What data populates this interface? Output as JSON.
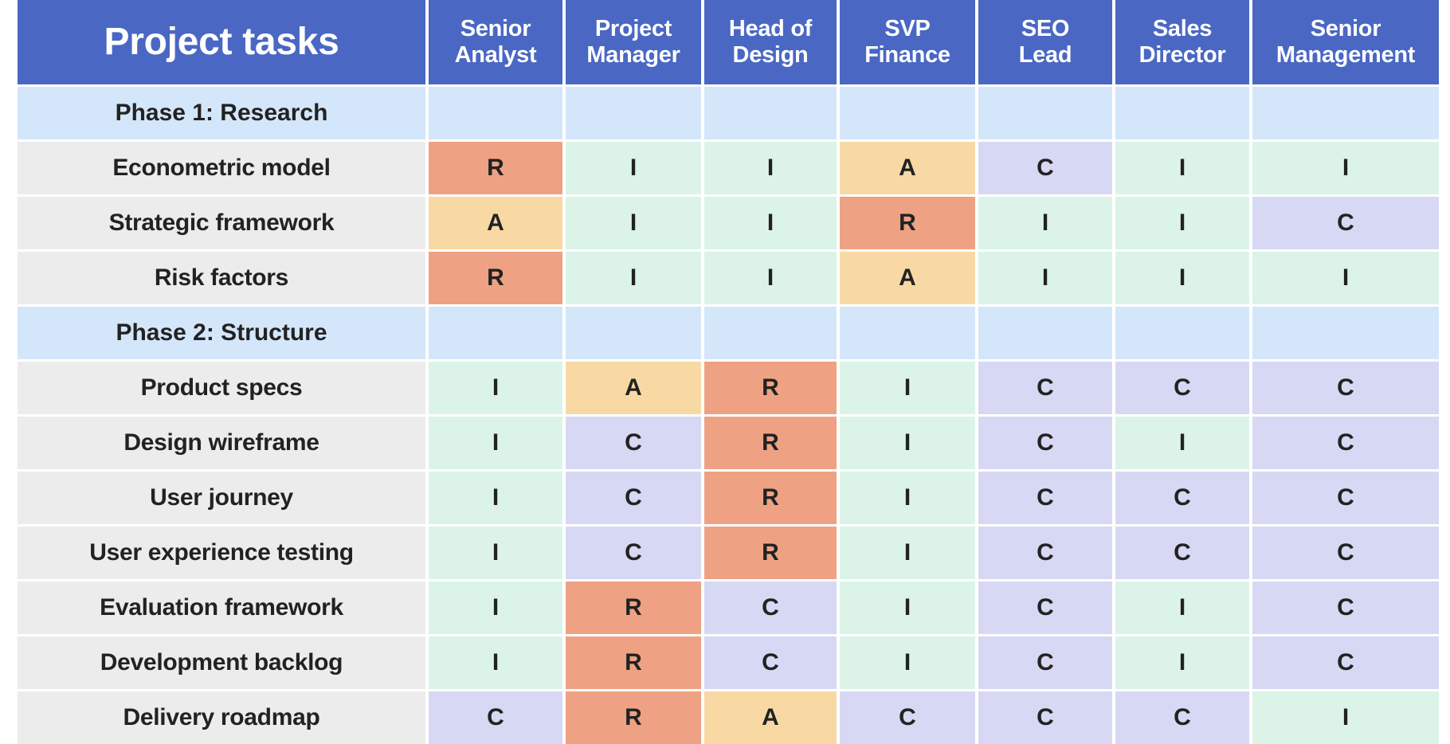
{
  "header": {
    "title": "Project tasks",
    "roles": [
      [
        "Senior",
        "Analyst"
      ],
      [
        "Project",
        "Manager"
      ],
      [
        "Head of",
        "Design"
      ],
      [
        "SVP",
        "Finance"
      ],
      [
        "SEO",
        "Lead"
      ],
      [
        "Sales",
        "Director"
      ],
      [
        "Senior",
        "Management"
      ]
    ]
  },
  "colors": {
    "header_bg": "#4a67c4",
    "phase_bg": "#d4e6fa",
    "task_bg": "#ececec",
    "R": "#eea283",
    "A": "#f8d9a4",
    "C": "#d7d8f3",
    "I": "#dbf4e7"
  },
  "rows": [
    {
      "type": "phase",
      "label": "Phase 1: Research"
    },
    {
      "type": "task",
      "label": "Econometric model",
      "codes": [
        "R",
        "I",
        "I",
        "A",
        "C",
        "I",
        "I"
      ]
    },
    {
      "type": "task",
      "label": "Strategic framework",
      "codes": [
        "A",
        "I",
        "I",
        "R",
        "I",
        "I",
        "C"
      ]
    },
    {
      "type": "task",
      "label": "Risk factors",
      "codes": [
        "R",
        "I",
        "I",
        "A",
        "I",
        "I",
        "I"
      ]
    },
    {
      "type": "phase",
      "label": "Phase 2: Structure"
    },
    {
      "type": "task",
      "label": "Product specs",
      "codes": [
        "I",
        "A",
        "R",
        "I",
        "C",
        "C",
        "C"
      ]
    },
    {
      "type": "task",
      "label": "Design wireframe",
      "codes": [
        "I",
        "C",
        "R",
        "I",
        "C",
        "I",
        "C"
      ]
    },
    {
      "type": "task",
      "label": "User journey",
      "codes": [
        "I",
        "C",
        "R",
        "I",
        "C",
        "C",
        "C"
      ]
    },
    {
      "type": "task",
      "label": "User experience testing",
      "codes": [
        "I",
        "C",
        "R",
        "I",
        "C",
        "C",
        "C"
      ]
    },
    {
      "type": "task",
      "label": "Evaluation framework",
      "codes": [
        "I",
        "R",
        "C",
        "I",
        "C",
        "I",
        "C"
      ]
    },
    {
      "type": "task",
      "label": "Development backlog",
      "codes": [
        "I",
        "R",
        "C",
        "I",
        "C",
        "I",
        "C"
      ]
    },
    {
      "type": "task",
      "label": "Delivery roadmap",
      "codes": [
        "C",
        "R",
        "A",
        "C",
        "C",
        "C",
        "I"
      ]
    }
  ]
}
